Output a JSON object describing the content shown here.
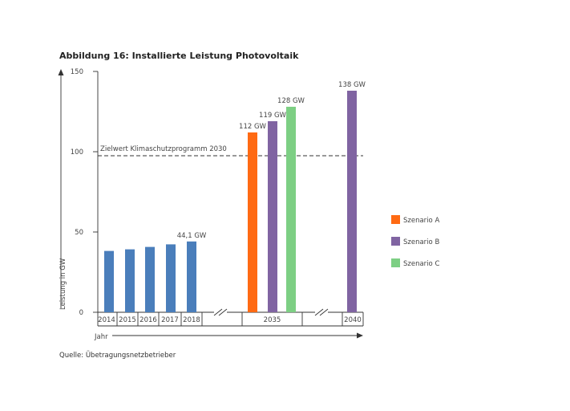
{
  "chart_data": {
    "type": "bar",
    "title": "Abbildung 16: Installierte Leistung Photovoltaik",
    "ylabel": "Leistung in GW",
    "xlabel": "Jahr",
    "ylim": [
      0,
      150
    ],
    "yticks": [
      0,
      50,
      100,
      150
    ],
    "source": "Quelle: Übetragungsnetzbetrieber",
    "reference_line": {
      "value": 97.5,
      "label": "Zielwert Klimaschutzprogramm 2030"
    },
    "axis_breaks": true,
    "groups": [
      {
        "label": "2014",
        "bars": [
          {
            "value": 38.2,
            "color": "#4a7ebb"
          }
        ]
      },
      {
        "label": "2015",
        "bars": [
          {
            "value": 39.2,
            "color": "#4a7ebb"
          }
        ]
      },
      {
        "label": "2016",
        "bars": [
          {
            "value": 40.7,
            "color": "#4a7ebb"
          }
        ]
      },
      {
        "label": "2017",
        "bars": [
          {
            "value": 42.3,
            "color": "#4a7ebb"
          }
        ]
      },
      {
        "label": "2018",
        "bars": [
          {
            "value": 44.1,
            "color": "#4a7ebb",
            "label": "44,1 GW"
          }
        ]
      },
      {
        "label": "2035",
        "bars": [
          {
            "value": 112,
            "color": "#ff6a13",
            "label": "112 GW",
            "series": "Szenario A"
          },
          {
            "value": 119,
            "color": "#8064a2",
            "label": "119 GW",
            "series": "Szenario B"
          },
          {
            "value": 128,
            "color": "#7dcf84",
            "label": "128 GW",
            "series": "Szenario C"
          }
        ]
      },
      {
        "label": "2040",
        "bars": [
          {
            "value": 138,
            "color": "#8064a2",
            "label": "138 GW",
            "series": "Szenario B"
          }
        ]
      }
    ],
    "legend": {
      "position": "right",
      "entries": [
        {
          "name": "Szenario A",
          "color": "#ff6a13"
        },
        {
          "name": "Szenario B",
          "color": "#8064a2"
        },
        {
          "name": "Szenario C",
          "color": "#7dcf84"
        }
      ]
    }
  }
}
